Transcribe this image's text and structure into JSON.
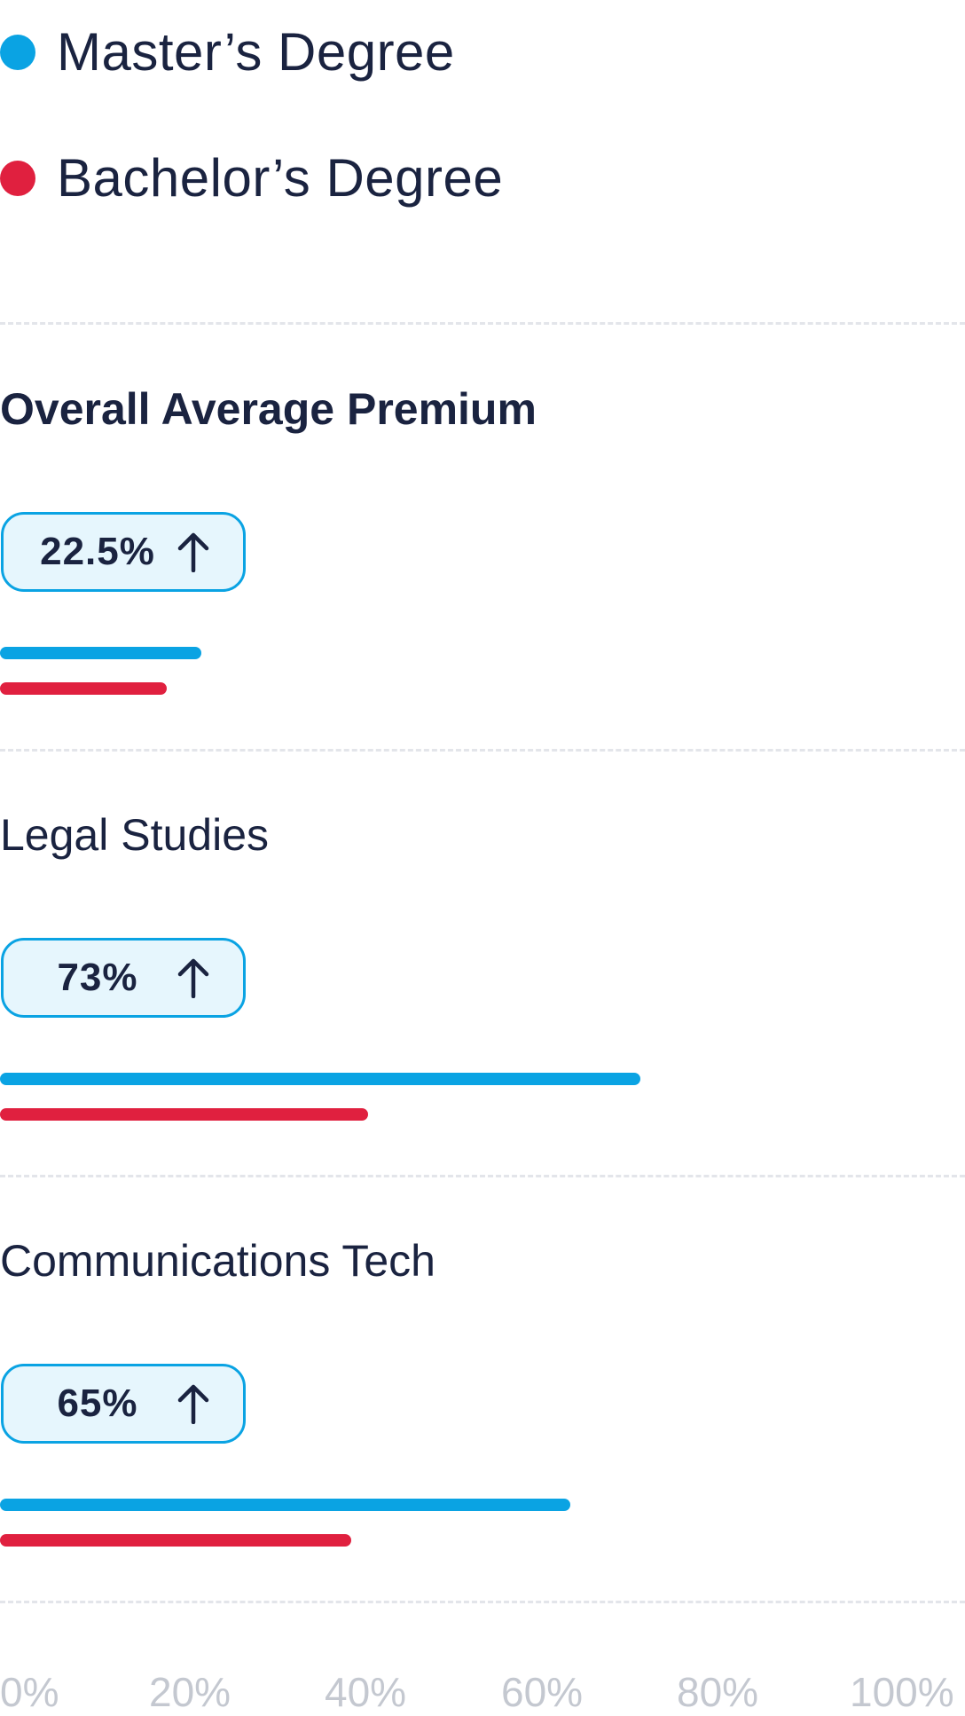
{
  "legend": [
    {
      "label": "Master’s Degree",
      "color": "#0aa3e3"
    },
    {
      "label": "Bachelor’s Degree",
      "color": "#e0203f"
    }
  ],
  "chart_data": {
    "type": "bar",
    "orientation": "horizontal",
    "categories": [
      "Overall Average Premium",
      "Legal Studies",
      "Communications Tech"
    ],
    "badges": [
      "22.5%",
      "73%",
      "65%"
    ],
    "series": [
      {
        "name": "Master’s Degree",
        "color": "#0aa3e3",
        "values": [
          23,
          73,
          65
        ]
      },
      {
        "name": "Bachelor’s Degree",
        "color": "#e0203f",
        "values": [
          19,
          42,
          40
        ]
      }
    ],
    "xlim": [
      0,
      110
    ],
    "x_ticks": [
      "0%",
      "20%",
      "40%",
      "60%",
      "80%",
      "100%"
    ],
    "grid": "horizontal dashed dividers"
  }
}
